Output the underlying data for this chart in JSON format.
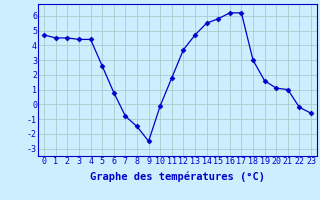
{
  "x": [
    0,
    1,
    2,
    3,
    4,
    5,
    6,
    7,
    8,
    9,
    10,
    11,
    12,
    13,
    14,
    15,
    16,
    17,
    18,
    19,
    20,
    21,
    22,
    23
  ],
  "y": [
    4.7,
    4.5,
    4.5,
    4.4,
    4.4,
    2.6,
    0.8,
    -0.8,
    -1.5,
    -2.5,
    -0.1,
    1.8,
    3.7,
    4.7,
    5.5,
    5.8,
    6.2,
    6.2,
    3.0,
    1.6,
    1.1,
    1.0,
    -0.2,
    -0.6
  ],
  "line_color": "#0000cc",
  "marker": "D",
  "marker_size": 2.5,
  "bg_color": "#cceeff",
  "grid_color": "#aacccc",
  "xlabel": "Graphe des températures (°C)",
  "xlabel_fontsize": 7.5,
  "tick_fontsize": 6,
  "ylim": [
    -3.5,
    6.8
  ],
  "yticks": [
    -3,
    -2,
    -1,
    0,
    1,
    2,
    3,
    4,
    5,
    6
  ],
  "xlim": [
    -0.5,
    23.5
  ],
  "xticks": [
    0,
    1,
    2,
    3,
    4,
    5,
    6,
    7,
    8,
    9,
    10,
    11,
    12,
    13,
    14,
    15,
    16,
    17,
    18,
    19,
    20,
    21,
    22,
    23
  ]
}
